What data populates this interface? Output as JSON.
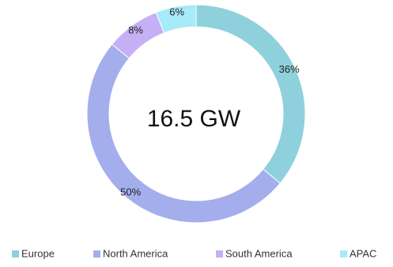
{
  "chart_data": {
    "type": "pie",
    "center_label": "16.5 GW",
    "categories": [
      "Europe",
      "North America",
      "South America",
      "APAC"
    ],
    "values": [
      36,
      50,
      8,
      6
    ],
    "value_labels": [
      "36%",
      "50%",
      "8%",
      "6%"
    ],
    "colors": [
      "#8ed1dc",
      "#a4aeec",
      "#c5b0f6",
      "#a6ebf7"
    ],
    "legend_position": "bottom"
  }
}
